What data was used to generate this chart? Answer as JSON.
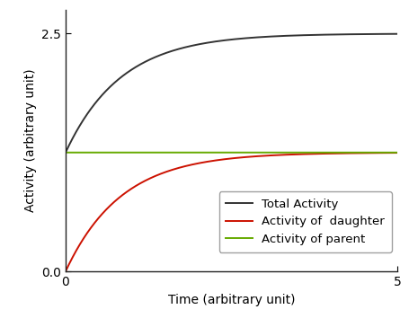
{
  "title": "",
  "xlabel": "Time (arbitrary unit)",
  "ylabel": "Activity (arbitrary unit)",
  "xlim": [
    0,
    5
  ],
  "ylim": [
    0.0,
    2.75
  ],
  "yticks": [
    0.0,
    2.5
  ],
  "xticks": [
    0,
    5
  ],
  "parent_activity": 1.25,
  "lambda_daughter": 1.2,
  "t_start": 0.0,
  "t_end": 5.0,
  "n_points": 2000,
  "color_total": "#333333",
  "color_daughter": "#cc1100",
  "color_parent": "#66aa00",
  "linewidth": 1.4,
  "legend_labels": [
    "Total Activity",
    "Activity of  daughter",
    "Activity of parent"
  ],
  "legend_fontsize": 9.5,
  "axis_label_fontsize": 10,
  "tick_fontsize": 10,
  "background_color": "#ffffff"
}
